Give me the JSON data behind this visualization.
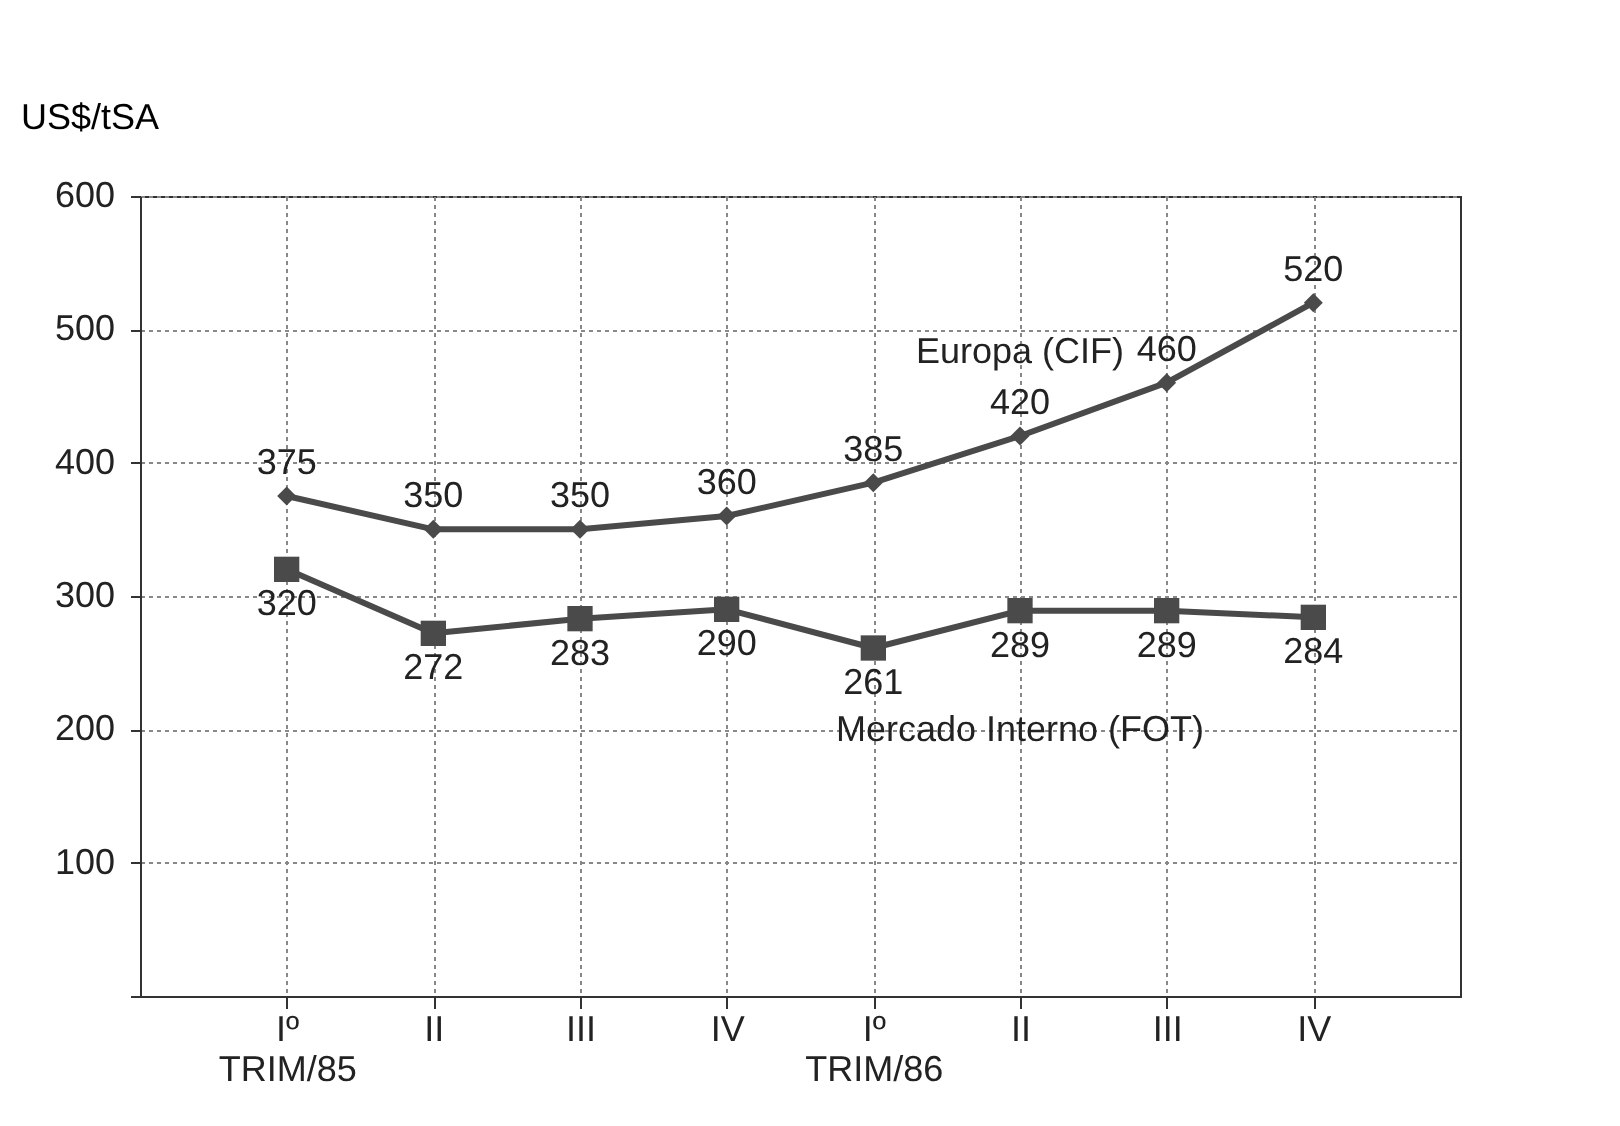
{
  "chart_data": {
    "type": "line",
    "ylabel": "US$/tSA",
    "categories": [
      "Iº\nTRIM/85",
      "II",
      "III",
      "IV",
      "Iº\nTRIM/86",
      "II",
      "III",
      "IV"
    ],
    "series": [
      {
        "name": "Europa (CIF)",
        "color": "#4a4a4a",
        "marker": "diamond",
        "values": [
          375,
          350,
          350,
          360,
          385,
          420,
          460,
          520
        ]
      },
      {
        "name": "Mercado Interno (FOT)",
        "color": "#4a4a4a",
        "marker": "square",
        "values": [
          320,
          272,
          283,
          290,
          261,
          289,
          289,
          284
        ]
      }
    ],
    "ylim": [
      0,
      600
    ],
    "yticks": [
      {
        "value": 0,
        "label": null
      },
      100,
      200,
      300,
      400,
      500,
      600
    ],
    "grid": true,
    "legend": false,
    "data_labels": true,
    "line_style": "solid"
  }
}
